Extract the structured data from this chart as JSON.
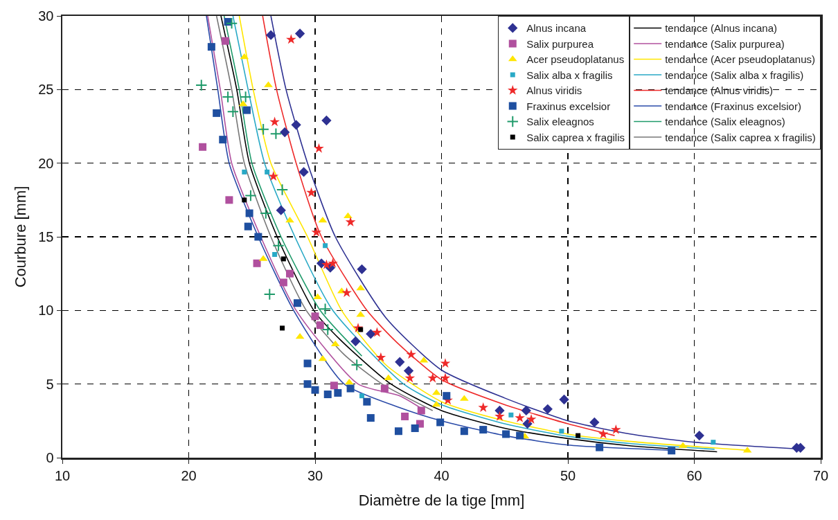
{
  "chart_data": {
    "type": "scatter",
    "xlabel": "Diamètre de la tige [mm]",
    "ylabel": "Courbure [mm]",
    "xlim": [
      10,
      70
    ],
    "xticks": [
      10,
      20,
      30,
      40,
      50,
      60,
      70
    ],
    "ylim": [
      0,
      30
    ],
    "yticks": [
      0,
      5,
      10,
      15,
      20,
      25,
      30
    ],
    "grid": true,
    "legend": "top right",
    "series": [
      {
        "name": "Alnus incana",
        "type": "scatter",
        "marker": "diamond",
        "color": "#2e3192",
        "x": [
          26.5,
          28.8,
          30.9,
          28.5,
          27.6,
          29.1,
          27.3,
          30.5,
          31.2,
          33.7,
          34.4,
          33.2,
          36.7,
          37.4,
          44.6,
          46.7,
          48.4,
          49.7,
          52.1,
          46.8,
          60.4,
          68.1,
          68.4
        ],
        "values": [
          28.7,
          28.8,
          22.9,
          22.6,
          22.1,
          19.4,
          16.8,
          13.2,
          12.9,
          12.8,
          8.4,
          7.9,
          6.5,
          5.9,
          3.2,
          3.2,
          3.3,
          3.95,
          2.4,
          2.3,
          1.5,
          0.67,
          0.67
        ]
      },
      {
        "name": "tendance (Alnus incana)",
        "type": "line",
        "marker": "none",
        "color": "#000000",
        "x": [
          22.55,
          23.8,
          24.8,
          27,
          29.9,
          32,
          36,
          40,
          45,
          50,
          55,
          61.8
        ],
        "values": [
          30,
          25,
          20,
          15,
          10,
          8,
          5,
          3.2,
          2,
          1.3,
          0.8,
          0.4
        ]
      },
      {
        "name": "Salix purpurea",
        "type": "scatter",
        "marker": "square",
        "color": "#b0509e",
        "x": [
          22.9,
          21.1,
          23.2,
          25.4,
          28.0,
          27.5,
          30.0,
          30.4,
          31.5,
          35.5,
          37.1,
          38.3,
          38.4
        ],
        "values": [
          28.3,
          21.1,
          17.5,
          13.2,
          12.5,
          11.9,
          9.6,
          9.0,
          4.9,
          4.7,
          2.8,
          2.3,
          3.2
        ]
      },
      {
        "name": "tendance (Salix purpurea)",
        "type": "line",
        "marker": "none",
        "color": "#b0509e",
        "x": [
          21.5,
          22.5,
          23.4,
          25.7,
          28.5,
          33.4,
          36.7,
          38.5
        ],
        "values": [
          30,
          25,
          20,
          15,
          10,
          5,
          4.2,
          3.3
        ]
      },
      {
        "name": "Acer pseudoplatanus",
        "type": "scatter",
        "marker": "triangle",
        "color": "#ffe600",
        "x": [
          24.4,
          26.3,
          24.3,
          28.0,
          30.6,
          32.6,
          25.9,
          32.1,
          33.6,
          30.2,
          33.6,
          28.8,
          31.6,
          30.6,
          32.7,
          35.8,
          38.6,
          39.6,
          41.8,
          39.6,
          46.6,
          59.1,
          64.2
        ],
        "values": [
          27.2,
          25.3,
          24.0,
          16.1,
          16.1,
          16.4,
          13.5,
          11.3,
          11.5,
          10.9,
          9.7,
          8.2,
          7.7,
          6.7,
          5.1,
          5.4,
          6.6,
          4.4,
          4.0,
          3.6,
          1.43,
          0.8,
          0.48
        ]
      },
      {
        "name": "tendance (Acer pseudoplatanus)",
        "type": "line",
        "marker": "none",
        "color": "#ffe600",
        "x": [
          24,
          25.1,
          26.5,
          29.4,
          32.1,
          35.6,
          40,
          45,
          50,
          55,
          64.2
        ],
        "values": [
          30,
          25,
          20,
          15,
          10,
          6.3,
          3.8,
          2.5,
          1.6,
          1.1,
          0.5
        ]
      },
      {
        "name": "Salix alba x fragilis",
        "type": "scatter",
        "marker": "square",
        "color": "#29a9c6",
        "x": [
          26.2,
          24.4,
          30.8,
          26.8,
          33.7,
          45.5,
          49.5,
          61.5
        ],
        "values": [
          19.4,
          19.4,
          14.4,
          13.8,
          4.2,
          2.9,
          1.8,
          1.05
        ]
      },
      {
        "name": "tendance (Salix alba x fragilis)",
        "type": "line",
        "marker": "none",
        "color": "#29a9c6",
        "x": [
          23.5,
          24.7,
          26,
          28.4,
          31.4,
          37,
          40,
          45,
          50,
          55,
          61.6
        ],
        "values": [
          30,
          25,
          20,
          15,
          10,
          5,
          3.6,
          2.3,
          1.45,
          0.95,
          0.57
        ]
      },
      {
        "name": "Alnus viridis",
        "type": "scatter",
        "marker": "star",
        "color": "#ee2a2a",
        "x": [
          28.1,
          26.8,
          30.3,
          26.7,
          29.7,
          32.8,
          30.1,
          30.9,
          31.4,
          32.5,
          33.4,
          34.9,
          35.2,
          37.6,
          40.3,
          37.5,
          39.3,
          40.3,
          40.5,
          43.3,
          44.6,
          46.2,
          47.1,
          52.8,
          53.8
        ],
        "values": [
          28.4,
          22.8,
          21.0,
          19.1,
          18.0,
          16.0,
          15.3,
          13.1,
          13.2,
          11.2,
          8.8,
          8.5,
          6.8,
          7.0,
          6.4,
          5.4,
          5.4,
          5.4,
          3.9,
          3.4,
          2.8,
          2.7,
          2.6,
          1.6,
          1.9
        ]
      },
      {
        "name": "tendance (Alnus viridis)",
        "type": "line",
        "marker": "none",
        "color": "#ee2a2a",
        "x": [
          25.85,
          26.95,
          28.5,
          30.5,
          34.1,
          36.5,
          40,
          45,
          50,
          53.7
        ],
        "values": [
          30,
          25,
          20,
          15,
          10,
          7.8,
          5.3,
          3.6,
          2.3,
          1.5
        ]
      },
      {
        "name": "Fraxinus excelsior",
        "type": "scatter",
        "marker": "square",
        "color": "#1f4fa0",
        "x": [
          23.1,
          21.8,
          22.2,
          22.7,
          24.6,
          24.8,
          24.7,
          25.5,
          28.6,
          29.4,
          29.4,
          30.0,
          31.0,
          31.8,
          32.8,
          34.1,
          34.4,
          36.6,
          37.9,
          39.9,
          40.4,
          41.8,
          43.3,
          45.1,
          46.2,
          52.5,
          58.2
        ],
        "values": [
          29.6,
          27.9,
          23.4,
          21.6,
          23.6,
          16.6,
          15.7,
          15.0,
          10.5,
          6.4,
          5.0,
          4.6,
          4.3,
          4.4,
          4.7,
          3.8,
          2.7,
          1.8,
          2.0,
          2.4,
          4.2,
          1.8,
          1.9,
          1.6,
          1.5,
          0.7,
          0.48
        ]
      },
      {
        "name": "tendance (Fraxinus excelsior)",
        "type": "line",
        "marker": "none",
        "color": "#2a4aa8",
        "x": [
          21.4,
          22.3,
          23.2,
          25.5,
          28.3,
          32.3,
          36.7,
          40,
          45,
          50,
          58.3
        ],
        "values": [
          30,
          25,
          20,
          15,
          10,
          5,
          3.4,
          2.5,
          1.5,
          0.86,
          0.5
        ]
      },
      {
        "name": "Salix eleagnos",
        "type": "scatter",
        "marker": "cross",
        "color": "#1f9a6a",
        "x": [
          23.4,
          21.0,
          23.1,
          24.5,
          23.5,
          26.9,
          25.9,
          27.4,
          26.1,
          24.9,
          26.4,
          27.1,
          30.8,
          31.0,
          33.3
        ],
        "values": [
          29.5,
          25.3,
          24.5,
          24.5,
          23.5,
          22.0,
          22.3,
          18.2,
          16.6,
          17.8,
          11.1,
          14.4,
          10.1,
          8.7,
          6.3
        ]
      },
      {
        "name": "tendance (Salix eleagnos)",
        "type": "line",
        "marker": "none",
        "color": "#1f9a6a",
        "x": [
          22.8,
          24,
          25,
          27.3,
          30.4,
          33.7
        ],
        "values": [
          30,
          25,
          20,
          15,
          10,
          6.9
        ]
      },
      {
        "name": "Salix caprea x fragilis",
        "type": "scatter",
        "marker": "square",
        "color": "#000000",
        "x": [
          27.5,
          27.4,
          33.6,
          24.4,
          50.8
        ],
        "values": [
          13.5,
          8.8,
          8.7,
          17.5,
          1.5
        ]
      },
      {
        "name": "tendance (Salix caprea x fragilis)",
        "type": "line",
        "marker": "none",
        "color": "#777777",
        "x": [
          22.2,
          23.4,
          24.4,
          26.5,
          29.3,
          32.3,
          35.3,
          39.3
        ],
        "values": [
          30,
          25,
          20,
          15,
          10,
          7,
          5,
          3.2
        ]
      },
      {
        "type": "line",
        "marker": "none",
        "color": "#2e3192",
        "x": [
          26.5,
          27.7,
          29.4,
          31.6,
          35.6,
          40,
          45,
          50,
          55,
          60,
          68.6
        ],
        "values": [
          30,
          25,
          20,
          15,
          9.5,
          5.95,
          4.05,
          2.5,
          1.6,
          1.05,
          0.57
        ]
      }
    ]
  }
}
